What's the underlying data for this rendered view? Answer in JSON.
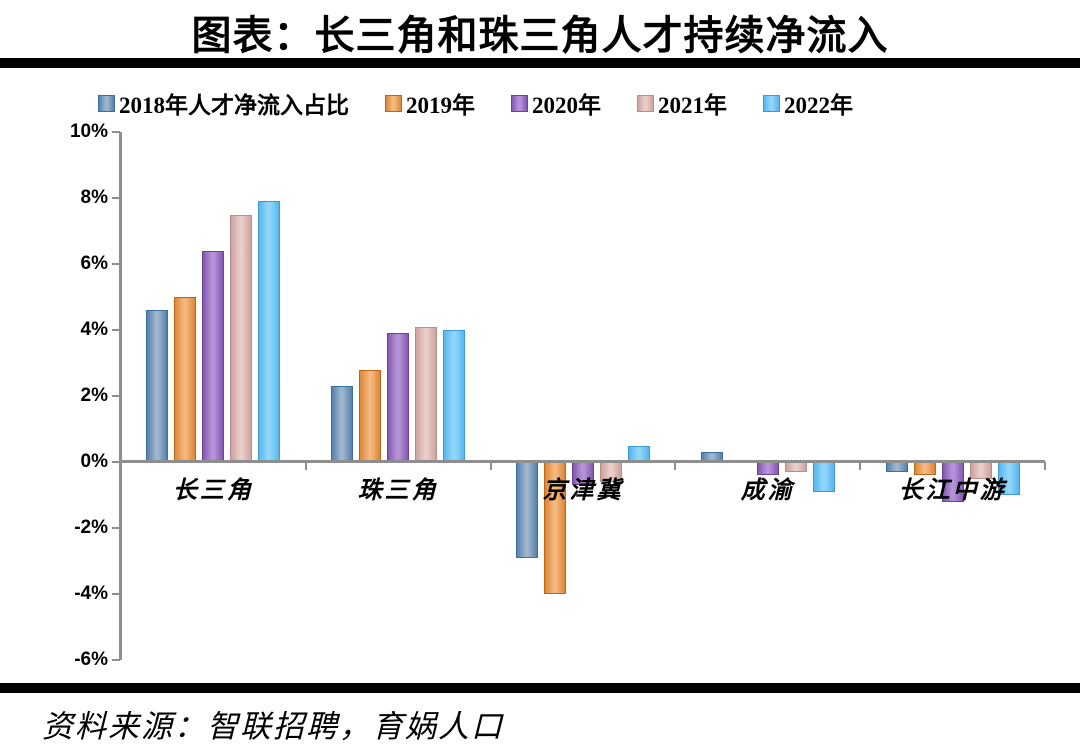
{
  "title": "图表：长三角和珠三角人才持续净流入",
  "source": "资料来源：智联招聘，育娲人口",
  "chart_data": {
    "type": "bar",
    "title": "图表：长三角和珠三角人才持续净流入",
    "categories": [
      "长三角",
      "珠三角",
      "京津冀",
      "成渝",
      "长江中游"
    ],
    "series": [
      {
        "name": "2018年人才净流入占比",
        "values": [
          4.6,
          2.3,
          -2.9,
          0.3,
          -0.3
        ],
        "color_center": "#9FB6CC",
        "color_edge": "#5680AE",
        "color_border": "#3E6D9F"
      },
      {
        "name": "2019年",
        "values": [
          5.0,
          2.8,
          -4.0,
          0.0,
          -0.4
        ],
        "color_center": "#F4B97E",
        "color_edge": "#DE8535",
        "color_border": "#BF6516"
      },
      {
        "name": "2020年",
        "values": [
          6.4,
          3.9,
          -0.7,
          -0.4,
          -1.2
        ],
        "color_center": "#B593D8",
        "color_edge": "#8458B0",
        "color_border": "#6B4396"
      },
      {
        "name": "2021年",
        "values": [
          7.5,
          4.1,
          -0.6,
          -0.3,
          -0.5
        ],
        "color_center": "#EACEC9",
        "color_edge": "#CDA29E",
        "color_border": "#B98E8A"
      },
      {
        "name": "2022年",
        "values": [
          7.9,
          4.0,
          0.5,
          -0.9,
          -1.0
        ],
        "color_center": "#90D6F9",
        "color_edge": "#57B6EE",
        "color_border": "#3D9AD1"
      }
    ],
    "ylabel": "",
    "xlabel": "",
    "ylim": [
      -6,
      10
    ],
    "yticks": [
      10,
      8,
      6,
      4,
      2,
      0,
      -2,
      -4,
      -6
    ],
    "ytick_suffix": "%",
    "grid": false,
    "legend_position": "top",
    "axis_color": "#8E8E8E"
  }
}
